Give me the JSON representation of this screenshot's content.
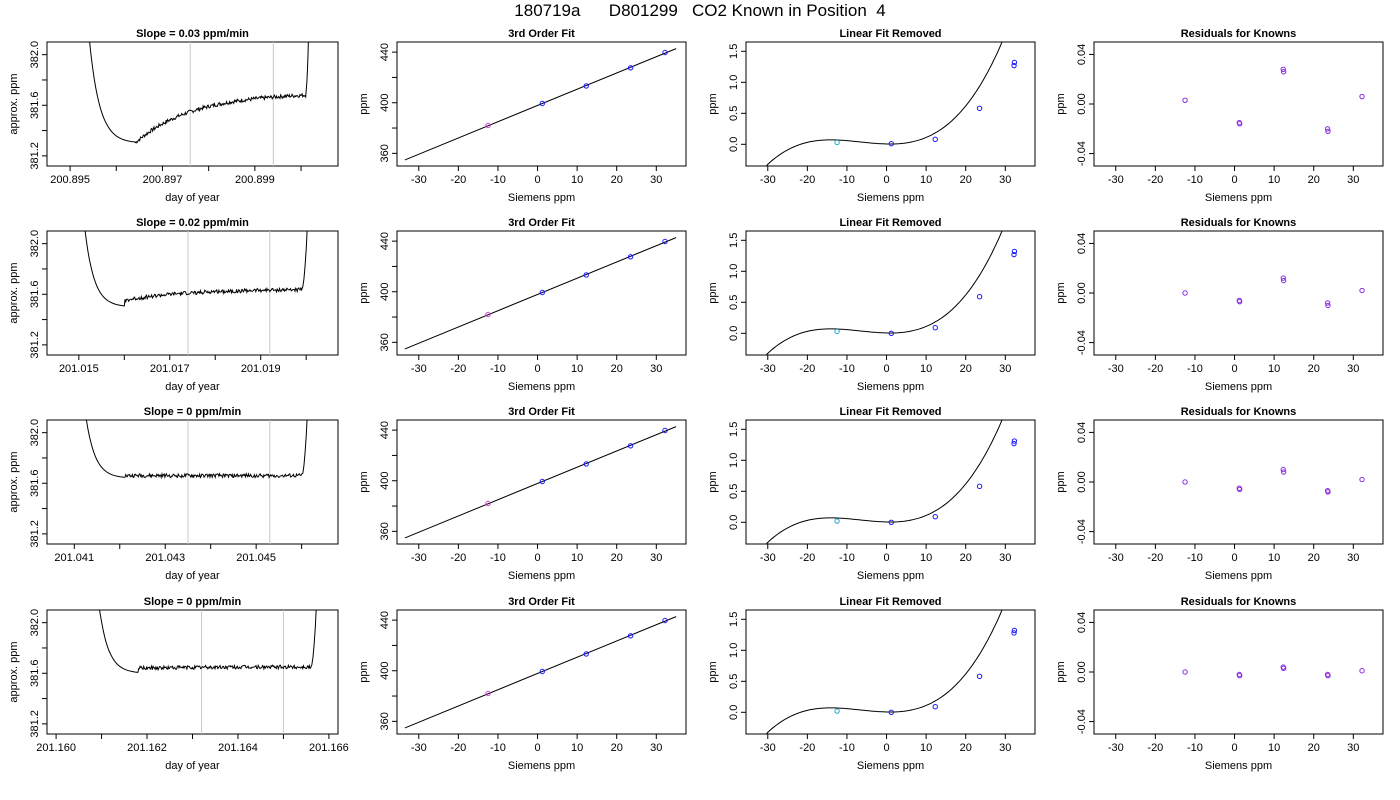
{
  "title": "180719a      D801299   CO2 Known in Position  4",
  "colors": {
    "axis": "#000000",
    "trace": "#000000",
    "vline": "#c8c8c8",
    "point_blue": "#1a1aff",
    "point_purple": "#8a2be2",
    "point_magenta": "#cc44cc",
    "point_cyan": "#22aacc"
  },
  "common": {
    "ylabel_trace": "approx. ppm",
    "xlabel_trace": "day of year",
    "title_fit": "3rd Order Fit",
    "title_lin": "Linear Fit Removed",
    "title_res": "Residuals for Knowns",
    "xlabel_siemens": "Siemens ppm",
    "ylabel_ppm": "ppm"
  },
  "chart_data": [
    {
      "row": 1,
      "trace": {
        "type": "line",
        "title": "Slope =  0.03  ppm/min",
        "xlabel": "day of year",
        "ylabel": "approx. ppm",
        "xlim": [
          200.8945,
          200.9008
        ],
        "ylim": [
          381.12,
          382.1
        ],
        "xticks": [
          200.895,
          200.896,
          200.897,
          200.898,
          200.899,
          200.9
        ],
        "xtick_labels": [
          "200.895",
          "",
          "200.897",
          "",
          "200.899",
          ""
        ],
        "yticks": [
          381.2,
          381.4,
          381.6,
          381.8,
          382.0
        ],
        "ytick_labels": [
          "381.2",
          "",
          "381.6",
          "",
          "382.0"
        ],
        "vlines": [
          200.8976,
          200.8994
        ],
        "start_x": 200.8953,
        "plateau_start": 200.8964,
        "plateau_end": 200.9001,
        "end_x": 200.9002,
        "plateau_from": 381.3,
        "plateau_to": 381.7,
        "dip": 381.3
      },
      "fit": {
        "type": "scatter",
        "title": "3rd Order Fit",
        "xlabel": "Siemens ppm",
        "ylabel": "ppm",
        "xlim": [
          -35.5,
          37.5
        ],
        "ylim": [
          350,
          448
        ],
        "xticks": [
          -30,
          -20,
          -10,
          0,
          10,
          20,
          30
        ],
        "yticks": [
          360,
          380,
          400,
          420,
          440
        ],
        "ytick_labels": [
          "360",
          "",
          "400",
          "",
          "440"
        ],
        "x": [
          -12.5,
          1.2,
          12.3,
          23.5,
          32.2
        ],
        "y": [
          382.0,
          399.4,
          413.3,
          427.6,
          439.7
        ]
      },
      "linfit": {
        "type": "scatter",
        "title": "Linear Fit Removed",
        "xlabel": "Siemens ppm",
        "ylabel": "ppm",
        "xlim": [
          -35.5,
          37.5
        ],
        "ylim": [
          -0.35,
          1.65
        ],
        "xticks": [
          -30,
          -20,
          -10,
          0,
          10,
          20,
          30
        ],
        "yticks": [
          0.0,
          0.5,
          1.0,
          1.5
        ],
        "ytick_labels": [
          "0.0",
          "0.5",
          "1.0",
          "1.5"
        ],
        "x": [
          -12.5,
          1.2,
          12.3,
          23.5,
          32.2,
          32.3
        ],
        "y": [
          0.03,
          0.01,
          0.08,
          0.58,
          1.27,
          1.32
        ]
      },
      "residuals": {
        "type": "scatter",
        "title": "Residuals for Knowns",
        "xlabel": "Siemens ppm",
        "ylabel": "ppm",
        "xlim": [
          -35.5,
          37.5
        ],
        "ylim": [
          -0.05,
          0.05
        ],
        "xticks": [
          -30,
          -20,
          -10,
          0,
          10,
          20,
          30
        ],
        "yticks": [
          -0.04,
          0.0,
          0.04
        ],
        "ytick_labels": [
          "-0.04",
          "0.00",
          "0.04"
        ],
        "x": [
          -12.5,
          1.2,
          1.3,
          12.3,
          12.4,
          23.5,
          23.6,
          32.2
        ],
        "y": [
          0.003,
          -0.015,
          -0.016,
          0.028,
          0.026,
          -0.02,
          -0.022,
          0.006
        ]
      }
    },
    {
      "row": 2,
      "trace": {
        "type": "line",
        "title": "Slope =  0.02  ppm/min",
        "xlabel": "day of year",
        "ylabel": "approx. ppm",
        "xlim": [
          201.0143,
          201.0207
        ],
        "ylim": [
          381.12,
          382.1
        ],
        "xticks": [
          201.015,
          201.016,
          201.017,
          201.018,
          201.019,
          201.02
        ],
        "xtick_labels": [
          "201.015",
          "",
          "201.017",
          "",
          "201.019",
          ""
        ],
        "yticks": [
          381.2,
          381.4,
          381.6,
          381.8,
          382.0
        ],
        "ytick_labels": [
          "381.2",
          "",
          "381.6",
          "",
          "382.0"
        ],
        "vlines": [
          201.0174,
          201.0192
        ],
        "start_x": 201.015,
        "plateau_start": 201.016,
        "plateau_end": 201.0199,
        "end_x": 201.0201,
        "plateau_from": 381.55,
        "plateau_to": 381.64,
        "dip": 381.5
      },
      "fit": {
        "type": "scatter",
        "title": "3rd Order Fit",
        "xlabel": "Siemens ppm",
        "ylabel": "ppm",
        "xlim": [
          -35.5,
          37.5
        ],
        "ylim": [
          350,
          448
        ],
        "xticks": [
          -30,
          -20,
          -10,
          0,
          10,
          20,
          30
        ],
        "yticks": [
          360,
          380,
          400,
          420,
          440
        ],
        "ytick_labels": [
          "360",
          "",
          "400",
          "",
          "440"
        ],
        "x": [
          -12.5,
          1.2,
          12.3,
          23.5,
          32.2
        ],
        "y": [
          382.0,
          399.4,
          413.3,
          427.6,
          439.7
        ]
      },
      "linfit": {
        "type": "scatter",
        "title": "Linear Fit Removed",
        "xlabel": "Siemens ppm",
        "ylabel": "ppm",
        "xlim": [
          -35.5,
          37.5
        ],
        "ylim": [
          -0.35,
          1.65
        ],
        "xticks": [
          -30,
          -20,
          -10,
          0,
          10,
          20,
          30
        ],
        "yticks": [
          0.0,
          0.5,
          1.0,
          1.5
        ],
        "ytick_labels": [
          "0.0",
          "0.5",
          "1.0",
          "1.5"
        ],
        "x": [
          -12.5,
          1.2,
          12.3,
          23.5,
          32.2,
          32.3
        ],
        "y": [
          0.03,
          0.0,
          0.09,
          0.59,
          1.27,
          1.32
        ]
      },
      "residuals": {
        "type": "scatter",
        "title": "Residuals for Knowns",
        "xlabel": "Siemens ppm",
        "ylabel": "ppm",
        "xlim": [
          -35.5,
          37.5
        ],
        "ylim": [
          -0.05,
          0.05
        ],
        "xticks": [
          -30,
          -20,
          -10,
          0,
          10,
          20,
          30
        ],
        "yticks": [
          -0.04,
          0.0,
          0.04
        ],
        "ytick_labels": [
          "-0.04",
          "0.00",
          "0.04"
        ],
        "x": [
          -12.5,
          1.2,
          1.3,
          12.3,
          12.4,
          23.5,
          23.6,
          32.2
        ],
        "y": [
          0.0,
          -0.006,
          -0.007,
          0.012,
          0.01,
          -0.008,
          -0.01,
          0.002
        ]
      }
    },
    {
      "row": 3,
      "trace": {
        "type": "line",
        "title": "Slope =  0  ppm/min",
        "xlabel": "day of year",
        "ylabel": "approx. ppm",
        "xlim": [
          201.0404,
          201.0468
        ],
        "ylim": [
          381.12,
          382.1
        ],
        "xticks": [
          201.041,
          201.042,
          201.043,
          201.044,
          201.045,
          201.046
        ],
        "xtick_labels": [
          "201.041",
          "",
          "201.043",
          "",
          "201.045",
          ""
        ],
        "yticks": [
          381.2,
          381.4,
          381.6,
          381.8,
          382.0
        ],
        "ytick_labels": [
          "381.2",
          "",
          "381.6",
          "",
          "382.0"
        ],
        "vlines": [
          201.0435,
          201.0453
        ],
        "start_x": 201.0411,
        "plateau_start": 201.0421,
        "plateau_end": 201.046,
        "end_x": 201.0462,
        "plateau_from": 381.66,
        "plateau_to": 381.66,
        "dip": 381.64
      },
      "fit": {
        "type": "scatter",
        "title": "3rd Order Fit",
        "xlabel": "Siemens ppm",
        "ylabel": "ppm",
        "xlim": [
          -35.5,
          37.5
        ],
        "ylim": [
          350,
          448
        ],
        "xticks": [
          -30,
          -20,
          -10,
          0,
          10,
          20,
          30
        ],
        "yticks": [
          360,
          380,
          400,
          420,
          440
        ],
        "ytick_labels": [
          "360",
          "",
          "400",
          "",
          "440"
        ],
        "x": [
          -12.5,
          1.2,
          12.3,
          23.5,
          32.2
        ],
        "y": [
          382.0,
          399.4,
          413.3,
          427.6,
          439.7
        ]
      },
      "linfit": {
        "type": "scatter",
        "title": "Linear Fit Removed",
        "xlabel": "Siemens ppm",
        "ylabel": "ppm",
        "xlim": [
          -35.5,
          37.5
        ],
        "ylim": [
          -0.35,
          1.65
        ],
        "xticks": [
          -30,
          -20,
          -10,
          0,
          10,
          20,
          30
        ],
        "yticks": [
          0.0,
          0.5,
          1.0,
          1.5
        ],
        "ytick_labels": [
          "0.0",
          "0.5",
          "1.0",
          "1.5"
        ],
        "x": [
          -12.5,
          1.2,
          12.3,
          23.5,
          32.2,
          32.3
        ],
        "y": [
          0.02,
          0.0,
          0.09,
          0.58,
          1.27,
          1.31
        ]
      },
      "residuals": {
        "type": "scatter",
        "title": "Residuals for Knowns",
        "xlabel": "Siemens ppm",
        "ylabel": "ppm",
        "xlim": [
          -35.5,
          37.5
        ],
        "ylim": [
          -0.05,
          0.05
        ],
        "xticks": [
          -30,
          -20,
          -10,
          0,
          10,
          20,
          30
        ],
        "yticks": [
          -0.04,
          0.0,
          0.04
        ],
        "ytick_labels": [
          "-0.04",
          "0.00",
          "0.04"
        ],
        "x": [
          -12.5,
          1.2,
          1.3,
          12.3,
          12.4,
          23.5,
          23.6,
          32.2
        ],
        "y": [
          0.0,
          -0.005,
          -0.006,
          0.01,
          0.008,
          -0.007,
          -0.008,
          0.002
        ]
      }
    },
    {
      "row": 4,
      "trace": {
        "type": "line",
        "title": "Slope =  0  ppm/min",
        "xlabel": "day of year",
        "ylabel": "approx. ppm",
        "xlim": [
          201.1598,
          201.1662
        ],
        "ylim": [
          381.12,
          382.1
        ],
        "xticks": [
          201.16,
          201.161,
          201.162,
          201.163,
          201.164,
          201.165,
          201.166
        ],
        "xtick_labels": [
          "201.160",
          "",
          "201.162",
          "",
          "201.164",
          "",
          "201.166"
        ],
        "yticks": [
          381.2,
          381.4,
          381.6,
          381.8,
          382.0
        ],
        "ytick_labels": [
          "381.2",
          "",
          "381.6",
          "",
          "382.0"
        ],
        "vlines": [
          201.1632,
          201.165
        ],
        "start_x": 201.1608,
        "plateau_start": 201.1618,
        "plateau_end": 201.1656,
        "end_x": 201.1658,
        "plateau_from": 381.64,
        "plateau_to": 381.65,
        "dip": 381.6
      },
      "fit": {
        "type": "scatter",
        "title": "3rd Order Fit",
        "xlabel": "Siemens ppm",
        "ylabel": "ppm",
        "xlim": [
          -35.5,
          37.5
        ],
        "ylim": [
          350,
          448
        ],
        "xticks": [
          -30,
          -20,
          -10,
          0,
          10,
          20,
          30
        ],
        "yticks": [
          360,
          380,
          400,
          420,
          440
        ],
        "ytick_labels": [
          "360",
          "",
          "400",
          "",
          "440"
        ],
        "x": [
          -12.5,
          1.2,
          12.3,
          23.5,
          32.2
        ],
        "y": [
          382.0,
          399.4,
          413.3,
          427.6,
          439.7
        ]
      },
      "linfit": {
        "type": "scatter",
        "title": "Linear Fit Removed",
        "xlabel": "Siemens ppm",
        "ylabel": "ppm",
        "xlim": [
          -35.5,
          37.5
        ],
        "ylim": [
          -0.35,
          1.65
        ],
        "xticks": [
          -30,
          -20,
          -10,
          0,
          10,
          20,
          30
        ],
        "yticks": [
          0.0,
          0.5,
          1.0,
          1.5
        ],
        "ytick_labels": [
          "0.0",
          "0.5",
          "1.0",
          "1.5"
        ],
        "x": [
          -12.5,
          1.2,
          12.3,
          23.5,
          32.2,
          32.3
        ],
        "y": [
          0.02,
          0.0,
          0.09,
          0.58,
          1.28,
          1.32
        ]
      },
      "residuals": {
        "type": "scatter",
        "title": "Residuals for Knowns",
        "xlabel": "Siemens ppm",
        "ylabel": "ppm",
        "xlim": [
          -35.5,
          37.5
        ],
        "ylim": [
          -0.05,
          0.05
        ],
        "xticks": [
          -30,
          -20,
          -10,
          0,
          10,
          20,
          30
        ],
        "yticks": [
          -0.04,
          0.0,
          0.04
        ],
        "ytick_labels": [
          "-0.04",
          "0.00",
          "0.04"
        ],
        "x": [
          -12.5,
          1.2,
          1.3,
          12.3,
          12.4,
          23.5,
          23.6,
          32.2
        ],
        "y": [
          0.0,
          -0.002,
          -0.003,
          0.004,
          0.003,
          -0.002,
          -0.003,
          0.001
        ]
      }
    }
  ]
}
